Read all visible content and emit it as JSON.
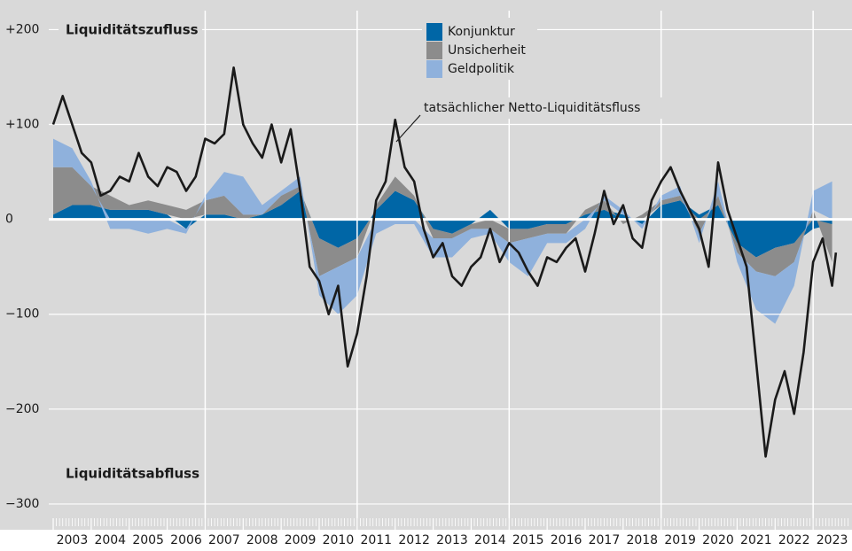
{
  "chart_data": {
    "type": "stacked_area_line",
    "annotations": [
      "Liquiditätszufluss",
      "Liquiditätsabfluss",
      "tatsächlicher Netto-Liquiditätsfluss"
    ],
    "xlim": [
      2003,
      2024
    ],
    "ylim": [
      -315,
      220
    ],
    "xticks": [
      2003,
      2004,
      2005,
      2006,
      2007,
      2008,
      2009,
      2010,
      2011,
      2012,
      2013,
      2014,
      2015,
      2016,
      2017,
      2018,
      2019,
      2020,
      2021,
      2022,
      2023
    ],
    "xgrid": [
      2007,
      2011,
      2015,
      2019,
      2023
    ],
    "yticks": [
      {
        "value": 200,
        "label": "+200"
      },
      {
        "value": 100,
        "label": "+100"
      },
      0,
      {
        "value": -100,
        "label": "−100"
      },
      {
        "value": -200,
        "label": "−200"
      },
      {
        "value": -300,
        "label": "−300"
      }
    ],
    "grid": true,
    "area_x": [
      2003,
      2003.5,
      2004,
      2004.5,
      2005,
      2005.5,
      2006,
      2006.5,
      2007,
      2007.5,
      2008,
      2008.5,
      2009,
      2009.5,
      2010,
      2010.5,
      2011,
      2011.5,
      2012,
      2012.5,
      2013,
      2013.5,
      2014,
      2014.5,
      2015,
      2015.5,
      2016,
      2016.5,
      2017,
      2017.5,
      2018,
      2018.5,
      2019,
      2019.5,
      2020,
      2020.5,
      2021,
      2021.5,
      2022,
      2022.5,
      2023,
      2023.5
    ],
    "series": [
      {
        "name": "Konjunktur",
        "color": "#0066a6",
        "values": [
          5,
          15,
          15,
          10,
          10,
          10,
          5,
          -10,
          5,
          5,
          0,
          5,
          15,
          30,
          -20,
          -30,
          -20,
          10,
          30,
          20,
          -10,
          -15,
          -5,
          10,
          -10,
          -10,
          -5,
          -5,
          5,
          10,
          5,
          -5,
          15,
          20,
          5,
          15,
          -25,
          -40,
          -30,
          -25,
          -10,
          -5
        ]
      },
      {
        "name": "Unsicherheit",
        "color": "#8c8c8c",
        "values": [
          50,
          40,
          20,
          15,
          5,
          10,
          10,
          10,
          15,
          20,
          5,
          0,
          10,
          5,
          -40,
          -20,
          -20,
          5,
          15,
          5,
          -10,
          -5,
          -5,
          -10,
          -15,
          -10,
          -10,
          -10,
          5,
          10,
          -5,
          5,
          5,
          5,
          -15,
          10,
          -10,
          -15,
          -30,
          -20,
          10,
          -40
        ]
      },
      {
        "name": "Geldpolitik",
        "color": "#8fb1dc",
        "values": [
          30,
          20,
          5,
          -10,
          -10,
          -15,
          -10,
          -5,
          5,
          25,
          40,
          10,
          5,
          10,
          -20,
          -50,
          -40,
          -15,
          -5,
          -5,
          -20,
          -20,
          -10,
          -5,
          -20,
          -40,
          -10,
          -10,
          -10,
          5,
          5,
          -5,
          5,
          10,
          -10,
          15,
          -10,
          -40,
          -50,
          -25,
          20,
          40
        ]
      }
    ],
    "line": {
      "color": "#1a1a1a",
      "x": [
        2003,
        2003.25,
        2003.5,
        2003.75,
        2004,
        2004.25,
        2004.5,
        2004.75,
        2005,
        2005.25,
        2005.5,
        2005.75,
        2006,
        2006.25,
        2006.5,
        2006.75,
        2007,
        2007.25,
        2007.5,
        2007.75,
        2008,
        2008.25,
        2008.5,
        2008.75,
        2009,
        2009.25,
        2009.5,
        2009.75,
        2010,
        2010.25,
        2010.5,
        2010.75,
        2011,
        2011.25,
        2011.5,
        2011.75,
        2012,
        2012.25,
        2012.5,
        2012.75,
        2013,
        2013.25,
        2013.5,
        2013.75,
        2014,
        2014.25,
        2014.5,
        2014.75,
        2015,
        2015.25,
        2015.5,
        2015.75,
        2016,
        2016.25,
        2016.5,
        2016.75,
        2017,
        2017.25,
        2017.5,
        2017.75,
        2018,
        2018.25,
        2018.5,
        2018.75,
        2019,
        2019.25,
        2019.5,
        2019.75,
        2020,
        2020.25,
        2020.5,
        2020.75,
        2021,
        2021.25,
        2021.5,
        2021.75,
        2022,
        2022.25,
        2022.5,
        2022.75,
        2023,
        2023.25,
        2023.5,
        2023.6
      ],
      "values": [
        100,
        130,
        100,
        70,
        60,
        25,
        30,
        45,
        40,
        70,
        45,
        35,
        55,
        50,
        30,
        45,
        85,
        80,
        90,
        160,
        100,
        80,
        65,
        100,
        60,
        95,
        30,
        -50,
        -65,
        -100,
        -70,
        -155,
        -120,
        -60,
        20,
        40,
        105,
        55,
        40,
        -10,
        -40,
        -25,
        -60,
        -70,
        -50,
        -40,
        -10,
        -45,
        -25,
        -35,
        -55,
        -70,
        -40,
        -45,
        -30,
        -20,
        -55,
        -15,
        30,
        -5,
        15,
        -20,
        -30,
        20,
        40,
        55,
        30,
        10,
        -10,
        -50,
        60,
        10,
        -20,
        -50,
        -150,
        -250,
        -190,
        -160,
        -205,
        -140,
        -45,
        -20,
        -70,
        -35
      ]
    }
  }
}
